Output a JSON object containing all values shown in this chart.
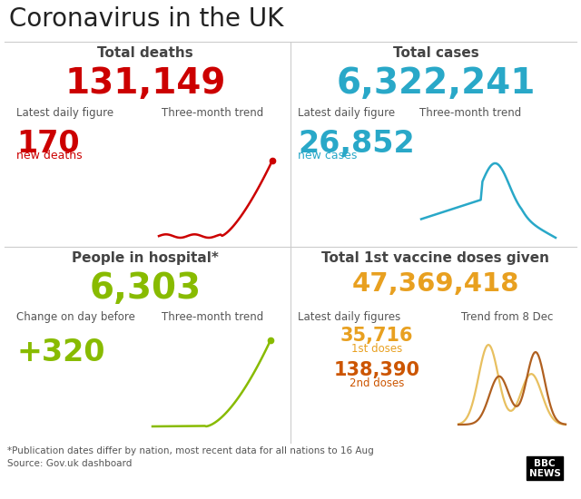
{
  "title": "Coronavirus in the UK",
  "bg_color": "#ffffff",
  "title_color": "#222222",
  "divider_color": "#cccccc",
  "quad_titles": [
    "Total deaths",
    "Total cases",
    "People in hospital*",
    "Total 1st vaccine doses given"
  ],
  "quad_title_color": "#444444",
  "total_deaths": "131,149",
  "total_deaths_color": "#cc0000",
  "total_cases": "6,322,241",
  "total_cases_color": "#29a8c8",
  "hosp_total": "6,303",
  "hosp_total_color": "#88bb00",
  "vaccine_total": "47,369,418",
  "vaccine_total_color": "#e8a020",
  "latest_daily_label": "Latest daily figure",
  "three_month_label": "Three-month trend",
  "change_day_label": "Change on day before",
  "latest_daily_figures_label": "Latest daily figures",
  "trend_from_label": "Trend from 8 Dec",
  "daily_deaths": "170",
  "daily_deaths_color": "#cc0000",
  "new_deaths_label": "new deaths",
  "new_deaths_label_color": "#cc0000",
  "daily_cases": "26,852",
  "daily_cases_color": "#29a8c8",
  "new_cases_label": "new cases",
  "new_cases_label_color": "#29a8c8",
  "hosp_change": "+320",
  "hosp_change_color": "#88bb00",
  "dose1_value": "35,716",
  "dose1_label": "1st doses",
  "dose1_color": "#e8a020",
  "dose2_value": "138,390",
  "dose2_label": "2nd doses",
  "dose2_color": "#cc5500",
  "footnote": "*Publication dates differ by nation, most recent data for all nations to 16 Aug",
  "source": "Source: Gov.uk dashboard",
  "footer_color": "#555555",
  "label_color": "#555555",
  "subtitle_color": "#444444"
}
